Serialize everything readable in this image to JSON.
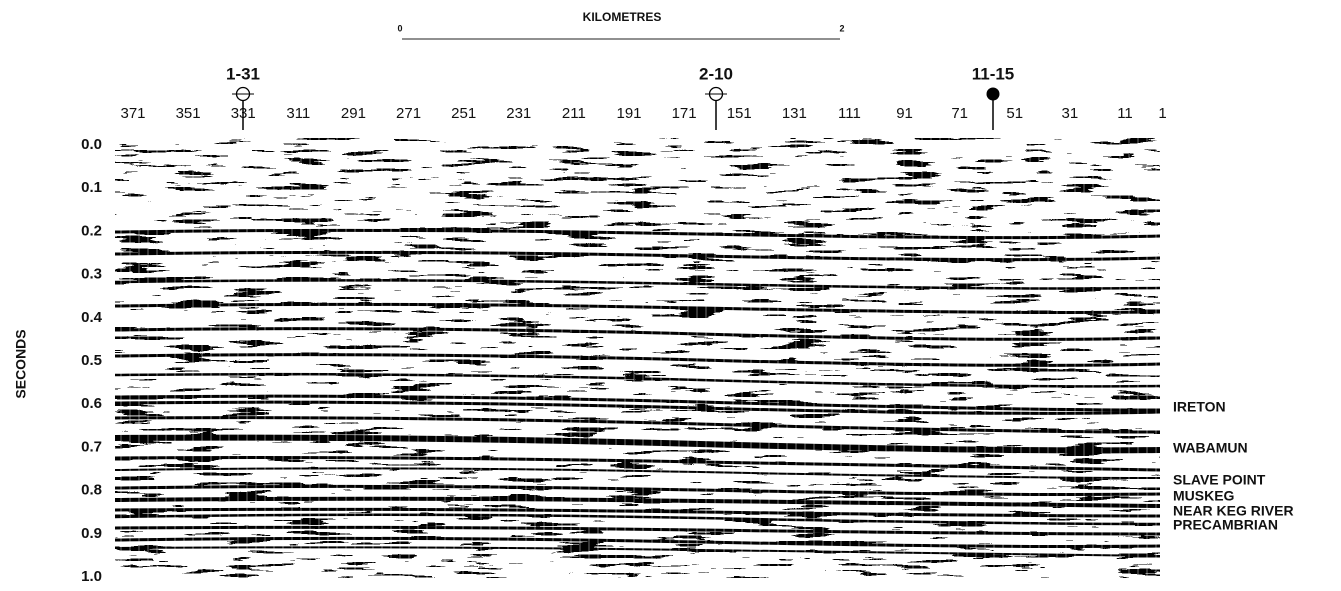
{
  "scale": {
    "title": "KILOMETRES",
    "start": "0",
    "end": "2"
  },
  "wells": [
    {
      "label": "1-31"
    },
    {
      "label": "2-10"
    },
    {
      "label": "11-15"
    }
  ],
  "shotpoints": [
    371,
    351,
    331,
    311,
    291,
    271,
    251,
    231,
    211,
    191,
    171,
    151,
    131,
    111,
    91,
    71,
    51,
    31,
    11,
    1
  ],
  "time_axis": {
    "label": "SECONDS",
    "ticks": [
      "0.0",
      "0.1",
      "0.2",
      "0.3",
      "0.4",
      "0.5",
      "0.6",
      "0.7",
      "0.8",
      "0.9",
      "1.0"
    ]
  },
  "horizons": [
    "WABAMUN",
    "IRETON",
    "SLAVE POINT",
    "MUSKEG",
    "NEAR KEG RIVER",
    "PRECAMBRIAN"
  ]
}
